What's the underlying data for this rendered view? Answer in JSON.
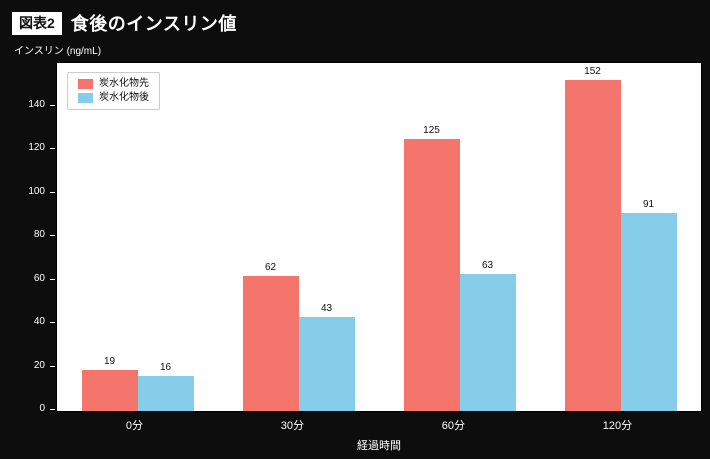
{
  "header": {
    "badge": "図表2",
    "title": "食後のインスリン値"
  },
  "chart": {
    "y_unit_label": "インスリン (ng/mL)",
    "xlabel": "経過時間"
  },
  "chart_data": {
    "type": "bar",
    "title": "食後のインスリン値",
    "categories": [
      "0分",
      "30分",
      "60分",
      "120分"
    ],
    "series": [
      {
        "name": "炭水化物先",
        "color": "#f4756b",
        "values": [
          19,
          62,
          125,
          152
        ]
      },
      {
        "name": "炭水化物後",
        "color": "#85cde8",
        "values": [
          16,
          43,
          63,
          91
        ]
      }
    ],
    "xlabel": "経過時間",
    "ylabel": "インスリン (ng/mL)",
    "ylim": [
      0,
      160
    ],
    "yticks": [
      0,
      20,
      40,
      60,
      80,
      100,
      120,
      140
    ],
    "grid": false,
    "legend_position": "upper left",
    "plot_background": "#ffffff",
    "page_background": "#0d0d0d"
  }
}
